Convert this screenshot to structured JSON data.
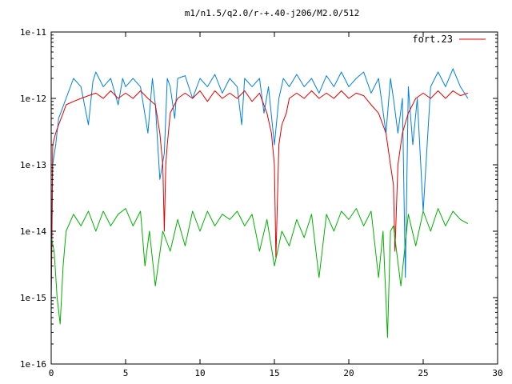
{
  "chart_data": {
    "type": "line",
    "title": "m1/n1.5/q2.0/r-+.40-j206/M2.0/512",
    "xlabel": "",
    "ylabel": "",
    "xlim": [
      0,
      30
    ],
    "ylim": [
      1e-16,
      1e-11
    ],
    "yscale": "log",
    "grid": false,
    "legend_position": "top-right",
    "x_ticks": [
      0,
      5,
      10,
      15,
      20,
      25,
      30
    ],
    "x_tick_labels": [
      "0",
      "5",
      "10",
      "15",
      "20",
      "25",
      "30"
    ],
    "y_ticks": [
      1e-16,
      1e-15,
      1e-14,
      1e-13,
      1e-12,
      1e-11
    ],
    "y_tick_labels": [
      "1e-16",
      "1e-15",
      "1e-14",
      "1e-13",
      "1e-12",
      "1e-11"
    ],
    "series": [
      {
        "name": "",
        "color": "#0080e0",
        "x": [
          0,
          0.1,
          0.3,
          0.5,
          1.0,
          1.5,
          2.0,
          2.5,
          2.8,
          3.0,
          3.5,
          4.0,
          4.5,
          4.8,
          5.0,
          5.5,
          6.0,
          6.5,
          6.8,
          7.0,
          7.3,
          7.6,
          7.8,
          8.0,
          8.3,
          8.5,
          9.0,
          9.5,
          10.0,
          10.5,
          11.0,
          11.5,
          12.0,
          12.5,
          12.8,
          13.0,
          13.5,
          14.0,
          14.3,
          14.6,
          15.0,
          15.3,
          15.6,
          16.0,
          16.5,
          17.0,
          17.5,
          18.0,
          18.5,
          19.0,
          19.5,
          20.0,
          20.5,
          21.0,
          21.5,
          22.0,
          22.5,
          22.8,
          23.0,
          23.3,
          23.6,
          23.8,
          24.0,
          24.3,
          24.6,
          25.0,
          25.5,
          26.0,
          26.5,
          27.0,
          27.5,
          28.0
        ],
        "y": [
          8e-16,
          1e-13,
          2e-13,
          5e-13,
          1e-12,
          2e-12,
          1.5e-12,
          4e-13,
          1.8e-12,
          2.5e-12,
          1.5e-12,
          2e-12,
          8e-13,
          2e-12,
          1.5e-12,
          2e-12,
          1.5e-12,
          3e-13,
          2e-12,
          8e-13,
          6e-14,
          1.5e-13,
          2e-12,
          1.5e-12,
          5e-13,
          2e-12,
          2.2e-12,
          1e-12,
          2e-12,
          1.5e-12,
          2.3e-12,
          1.2e-12,
          2e-12,
          1.5e-12,
          4e-13,
          2e-12,
          1.5e-12,
          2e-12,
          6e-13,
          1.5e-12,
          2e-13,
          1e-12,
          2e-12,
          1.5e-12,
          2.3e-12,
          1.5e-12,
          2e-12,
          1.2e-12,
          2.2e-12,
          1.5e-12,
          2.5e-12,
          1.5e-12,
          2e-12,
          2.5e-12,
          1.2e-12,
          2e-12,
          3e-13,
          2e-12,
          1e-12,
          3e-13,
          1e-12,
          2e-15,
          1.5e-12,
          2e-13,
          1e-12,
          2e-14,
          1.5e-12,
          2.5e-12,
          1.5e-12,
          2.8e-12,
          1.5e-12,
          1e-12
        ]
      },
      {
        "name": "fort.23",
        "color": "#e00000",
        "x": [
          0,
          0.1,
          0.3,
          0.5,
          0.8,
          1.0,
          1.5,
          2.0,
          2.5,
          3.0,
          3.5,
          4.0,
          4.5,
          5.0,
          5.5,
          6.0,
          6.5,
          7.0,
          7.3,
          7.5,
          7.6,
          7.7,
          7.8,
          8.0,
          8.5,
          9.0,
          9.5,
          10.0,
          10.5,
          11.0,
          11.5,
          12.0,
          12.5,
          13.0,
          13.5,
          14.0,
          14.5,
          14.8,
          15.0,
          15.1,
          15.3,
          15.5,
          15.8,
          16.0,
          16.5,
          17.0,
          17.5,
          18.0,
          18.5,
          19.0,
          19.5,
          20.0,
          20.5,
          21.0,
          21.5,
          22.0,
          22.5,
          22.8,
          23.0,
          23.1,
          23.3,
          23.6,
          24.0,
          24.5,
          25.0,
          25.5,
          26.0,
          26.5,
          27.0,
          27.5,
          28.0
        ],
        "y": [
          1e-15,
          2e-13,
          3e-13,
          4e-13,
          6e-13,
          8e-13,
          9e-13,
          1e-12,
          1.1e-12,
          1.2e-12,
          1e-12,
          1.3e-12,
          1e-12,
          1.2e-12,
          1e-12,
          1.3e-12,
          1e-12,
          8e-13,
          3e-13,
          1e-13,
          1e-14,
          1e-13,
          2e-13,
          6e-13,
          1e-12,
          1.2e-12,
          1e-12,
          1.3e-12,
          9e-13,
          1.3e-12,
          1e-12,
          1.2e-12,
          1e-12,
          1.3e-12,
          9e-13,
          1.2e-12,
          6e-13,
          3e-13,
          1e-13,
          4e-15,
          2e-13,
          4e-13,
          6e-13,
          1e-12,
          1.2e-12,
          1e-12,
          1.3e-12,
          1e-12,
          1.2e-12,
          1e-12,
          1.3e-12,
          1e-12,
          1.2e-12,
          1.1e-12,
          8e-13,
          6e-13,
          3e-13,
          1e-13,
          5e-14,
          5e-15,
          1e-13,
          3e-13,
          6e-13,
          1e-12,
          1.2e-12,
          1e-12,
          1.3e-12,
          1e-12,
          1.3e-12,
          1.1e-12,
          1.2e-12
        ]
      },
      {
        "name": "",
        "color": "#00b000",
        "x": [
          0,
          0.2,
          0.4,
          0.6,
          0.8,
          1.0,
          1.5,
          2.0,
          2.5,
          3.0,
          3.5,
          4.0,
          4.5,
          5.0,
          5.5,
          6.0,
          6.3,
          6.6,
          7.0,
          7.5,
          8.0,
          8.5,
          9.0,
          9.5,
          10.0,
          10.5,
          11.0,
          11.5,
          12.0,
          12.5,
          13.0,
          13.5,
          14.0,
          14.5,
          15.0,
          15.5,
          16.0,
          16.5,
          17.0,
          17.5,
          18.0,
          18.5,
          19.0,
          19.5,
          20.0,
          20.5,
          21.0,
          21.5,
          22.0,
          22.3,
          22.6,
          22.8,
          23.0,
          23.5,
          24.0,
          24.5,
          25.0,
          25.5,
          26.0,
          26.5,
          27.0,
          27.5,
          28.0
        ],
        "y": [
          8e-15,
          5e-15,
          1e-15,
          4e-16,
          3e-15,
          1e-14,
          1.8e-14,
          1.2e-14,
          2e-14,
          1e-14,
          2e-14,
          1.2e-14,
          1.8e-14,
          2.2e-14,
          1.2e-14,
          2e-14,
          3e-15,
          1e-14,
          1.5e-15,
          1e-14,
          5e-15,
          1.5e-14,
          6e-15,
          2e-14,
          1e-14,
          2e-14,
          1.2e-14,
          1.8e-14,
          1.5e-14,
          2e-14,
          1.2e-14,
          1.8e-14,
          5e-15,
          1.5e-14,
          3e-15,
          1e-14,
          6e-15,
          1.5e-14,
          8e-15,
          1.8e-14,
          2e-15,
          1.8e-14,
          1e-14,
          2e-14,
          1.5e-14,
          2.2e-14,
          1.2e-14,
          2e-14,
          2e-15,
          1e-14,
          2.5e-16,
          1e-14,
          1.2e-14,
          1.5e-15,
          1.8e-14,
          6e-15,
          2e-14,
          1e-14,
          2.2e-14,
          1.2e-14,
          2e-14,
          1.5e-14,
          1.3e-14
        ]
      }
    ]
  }
}
